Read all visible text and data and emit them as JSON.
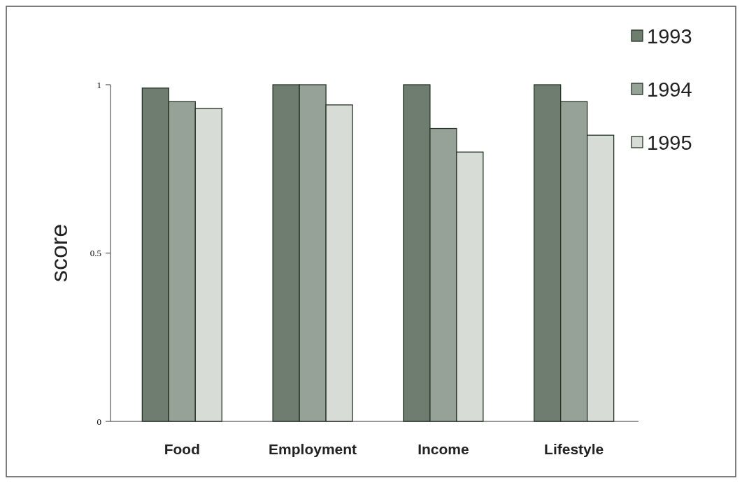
{
  "chart_data": {
    "type": "bar",
    "ylabel": "score",
    "categories": [
      "Food",
      "Employment",
      "Income",
      "Lifestyle"
    ],
    "series": [
      {
        "name": "1993",
        "color": "#6f7d70",
        "values": [
          0.99,
          1,
          1,
          1
        ]
      },
      {
        "name": "1994",
        "color": "#96a197",
        "values": [
          0.95,
          1,
          0.87,
          0.95
        ]
      },
      {
        "name": "1995",
        "color": "#d7dcd7",
        "values": [
          0.93,
          0.94,
          0.8,
          0.85
        ]
      }
    ],
    "ylim": [
      0,
      1
    ],
    "yticks": [
      0,
      0.5,
      1
    ],
    "grid": false,
    "legend": "top right"
  }
}
